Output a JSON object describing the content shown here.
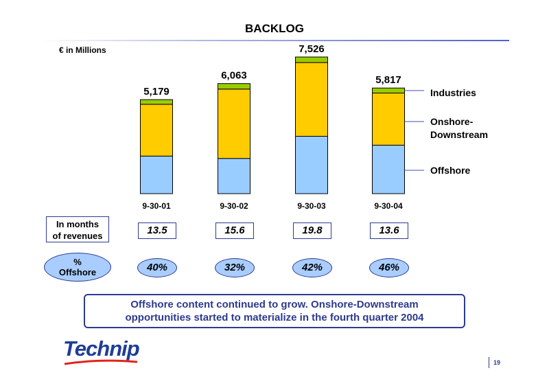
{
  "page": {
    "title": "BACKLOG",
    "unit_label": "€ in Millions",
    "months_label_line1": "In months",
    "months_label_line2": "of revenues",
    "offshore_label_line1": "%",
    "offshore_label_line2": "Offshore",
    "note_line1": "Offshore content continued to grow. Onshore-Downstream",
    "note_line2": "opportunities started to materialize in the fourth quarter 2004",
    "logo_text": "Technip",
    "page_number": "19"
  },
  "chart_data": {
    "type": "bar",
    "stacked": true,
    "title": "BACKLOG",
    "ylabel": "€ in Millions",
    "categories": [
      "9-30-01",
      "9-30-02",
      "9-30-03",
      "9-30-04"
    ],
    "totals": [
      "5,179",
      "6,063",
      "7,526",
      "5,817"
    ],
    "total_values": [
      5179,
      6063,
      7526,
      5817
    ],
    "series": [
      {
        "name": "Offshore",
        "color": "#99ccff",
        "values": [
          2070,
          1940,
          3160,
          2670
        ]
      },
      {
        "name": "Onshore-Downstream",
        "color": "#ffcc00",
        "values": [
          2850,
          3820,
          4060,
          2870
        ]
      },
      {
        "name": "Industries",
        "color": "#99cc00",
        "values": [
          259,
          303,
          306,
          277
        ]
      }
    ],
    "ylim": [
      0,
      7526
    ],
    "months_of_revenues": [
      "13.5",
      "15.6",
      "19.8",
      "13.6"
    ],
    "pct_offshore": [
      "40%",
      "32%",
      "42%",
      "46%"
    ]
  }
}
